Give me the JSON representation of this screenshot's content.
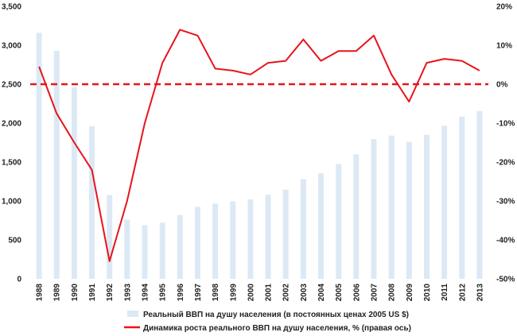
{
  "colors": {
    "bar": "#dce9f5",
    "line": "#e8141b",
    "zero_line": "#e8141b",
    "text": "#222222"
  },
  "chart_data": {
    "type": "bar+line",
    "categories": [
      "1988",
      "1989",
      "1990",
      "1991",
      "1992",
      "1993",
      "1994",
      "1995",
      "1996",
      "1997",
      "1998",
      "1999",
      "2000",
      "2001",
      "2002",
      "2003",
      "2004",
      "2005",
      "2006",
      "2007",
      "2008",
      "2009",
      "2010",
      "2011",
      "2012",
      "2013"
    ],
    "series": [
      {
        "name": "Реальный ВВП на душу населения (в постоянных ценах 2005 US $)",
        "type": "bar",
        "axis": "left",
        "values": [
          3160,
          2930,
          2460,
          1960,
          1075,
          760,
          690,
          720,
          820,
          925,
          965,
          995,
          1020,
          1080,
          1145,
          1280,
          1355,
          1475,
          1600,
          1795,
          1840,
          1760,
          1850,
          1965,
          2085,
          2155
        ]
      },
      {
        "name": "Динамика роста реального ВВП на душу населения, % (правая ось)",
        "type": "line",
        "axis": "right",
        "values": [
          4.5,
          -7.5,
          -15,
          -22,
          -45.5,
          -30,
          -10,
          5.5,
          14,
          12.5,
          4,
          3.5,
          2.5,
          5.5,
          6,
          11.5,
          6,
          8.5,
          8.5,
          12.5,
          2.5,
          -4.5,
          5.5,
          6.5,
          6,
          3.5
        ]
      }
    ],
    "y_left": {
      "ylim": [
        0,
        3500
      ],
      "ticks": [
        0,
        500,
        1000,
        1500,
        2000,
        2500,
        3000,
        3500
      ],
      "tick_labels": [
        "0",
        "500",
        "1,000",
        "1,500",
        "2,000",
        "2,500",
        "3,000",
        "3,500"
      ]
    },
    "y_right": {
      "ylim": [
        -50,
        20
      ],
      "ticks": [
        -50,
        -40,
        -30,
        -20,
        -10,
        0,
        10,
        20
      ],
      "tick_labels": [
        "-50%",
        "-40%",
        "-30%",
        "-20%",
        "-10%",
        "0%",
        "10%",
        "20%"
      ]
    },
    "reference_line": {
      "axis": "right",
      "value": 0,
      "style": "dashed"
    },
    "title": "",
    "xlabel": "",
    "ylabel": "",
    "legend": {
      "position": "bottom",
      "entries": [
        "Реальный ВВП на душу населения (в постоянных ценах 2005 US $)",
        "Динамика роста реального ВВП на душу населения, % (правая ось)"
      ]
    }
  }
}
